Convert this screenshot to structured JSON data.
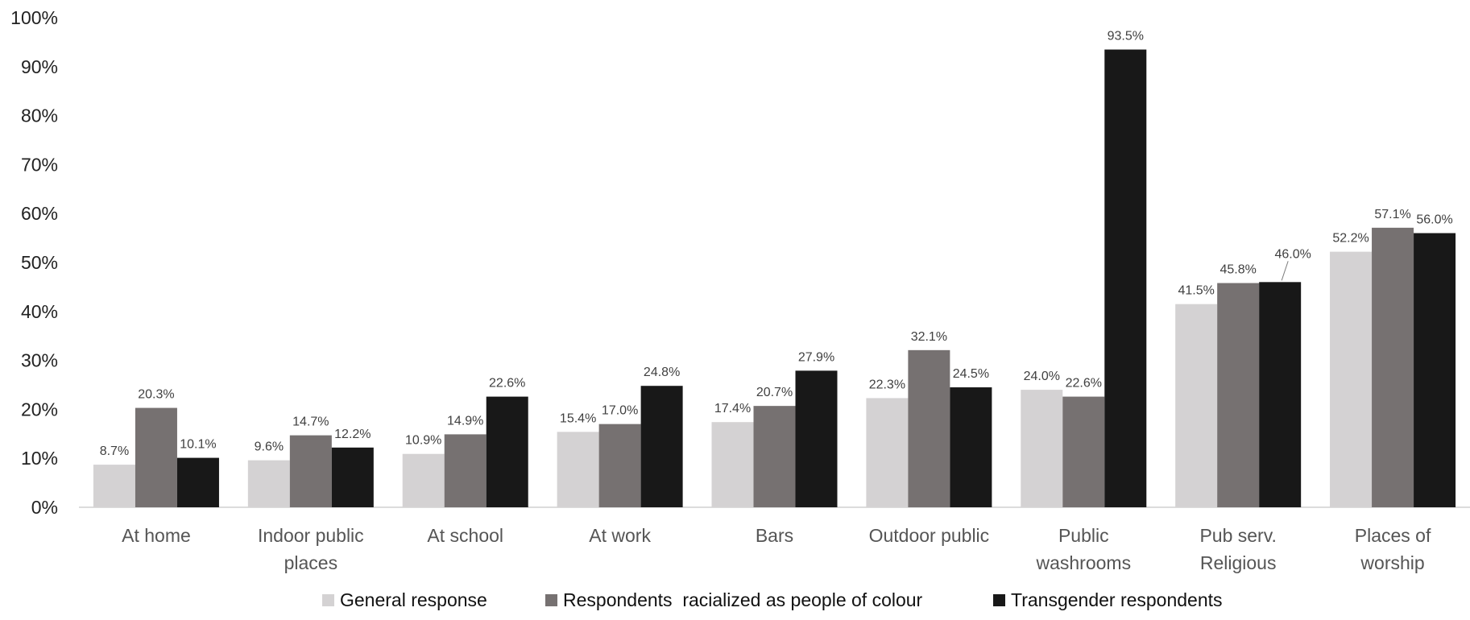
{
  "chart_data": {
    "type": "bar",
    "title": "",
    "xlabel": "",
    "ylabel": "",
    "ylim": [
      0,
      100
    ],
    "yticks": [
      0,
      10,
      20,
      30,
      40,
      50,
      60,
      70,
      80,
      90,
      100
    ],
    "ytick_labels": [
      "0%",
      "10%",
      "20%",
      "30%",
      "40%",
      "50%",
      "60%",
      "70%",
      "80%",
      "90%",
      "100%"
    ],
    "categories": [
      [
        "At home"
      ],
      [
        "Indoor public",
        "places"
      ],
      [
        "At school"
      ],
      [
        "At work"
      ],
      [
        "Bars"
      ],
      [
        "Outdoor public"
      ],
      [
        "Public",
        "washrooms"
      ],
      [
        "Pub serv.",
        "Religious"
      ],
      [
        "Places of",
        "worship"
      ]
    ],
    "series": [
      {
        "name": "General response",
        "color": "#d4d2d3",
        "values": [
          8.7,
          9.6,
          10.9,
          15.4,
          17.4,
          22.3,
          24.0,
          41.5,
          52.2
        ],
        "labels": [
          "8.7%",
          "9.6%",
          "10.9%",
          "15.4%",
          "17.4%",
          "22.3%",
          "24.0%",
          "41.5%",
          "52.2%"
        ]
      },
      {
        "name": "Respondents  racialized as people of colour",
        "color": "#767171",
        "values": [
          20.3,
          14.7,
          14.9,
          17.0,
          20.7,
          32.1,
          22.6,
          45.8,
          57.1
        ],
        "labels": [
          "20.3%",
          "14.7%",
          "14.9%",
          "17.0%",
          "20.7%",
          "32.1%",
          "22.6%",
          "45.8%",
          "57.1%"
        ]
      },
      {
        "name": "Transgender respondents",
        "color": "#181818",
        "values": [
          10.1,
          12.2,
          22.6,
          24.8,
          27.9,
          24.5,
          93.5,
          46.0,
          56.0
        ],
        "labels": [
          "10.1%",
          "12.2%",
          "22.6%",
          "24.8%",
          "27.9%",
          "24.5%",
          "93.5%",
          "46.0%",
          "56.0%"
        ]
      }
    ],
    "legend_position": "bottom",
    "grid": false
  }
}
